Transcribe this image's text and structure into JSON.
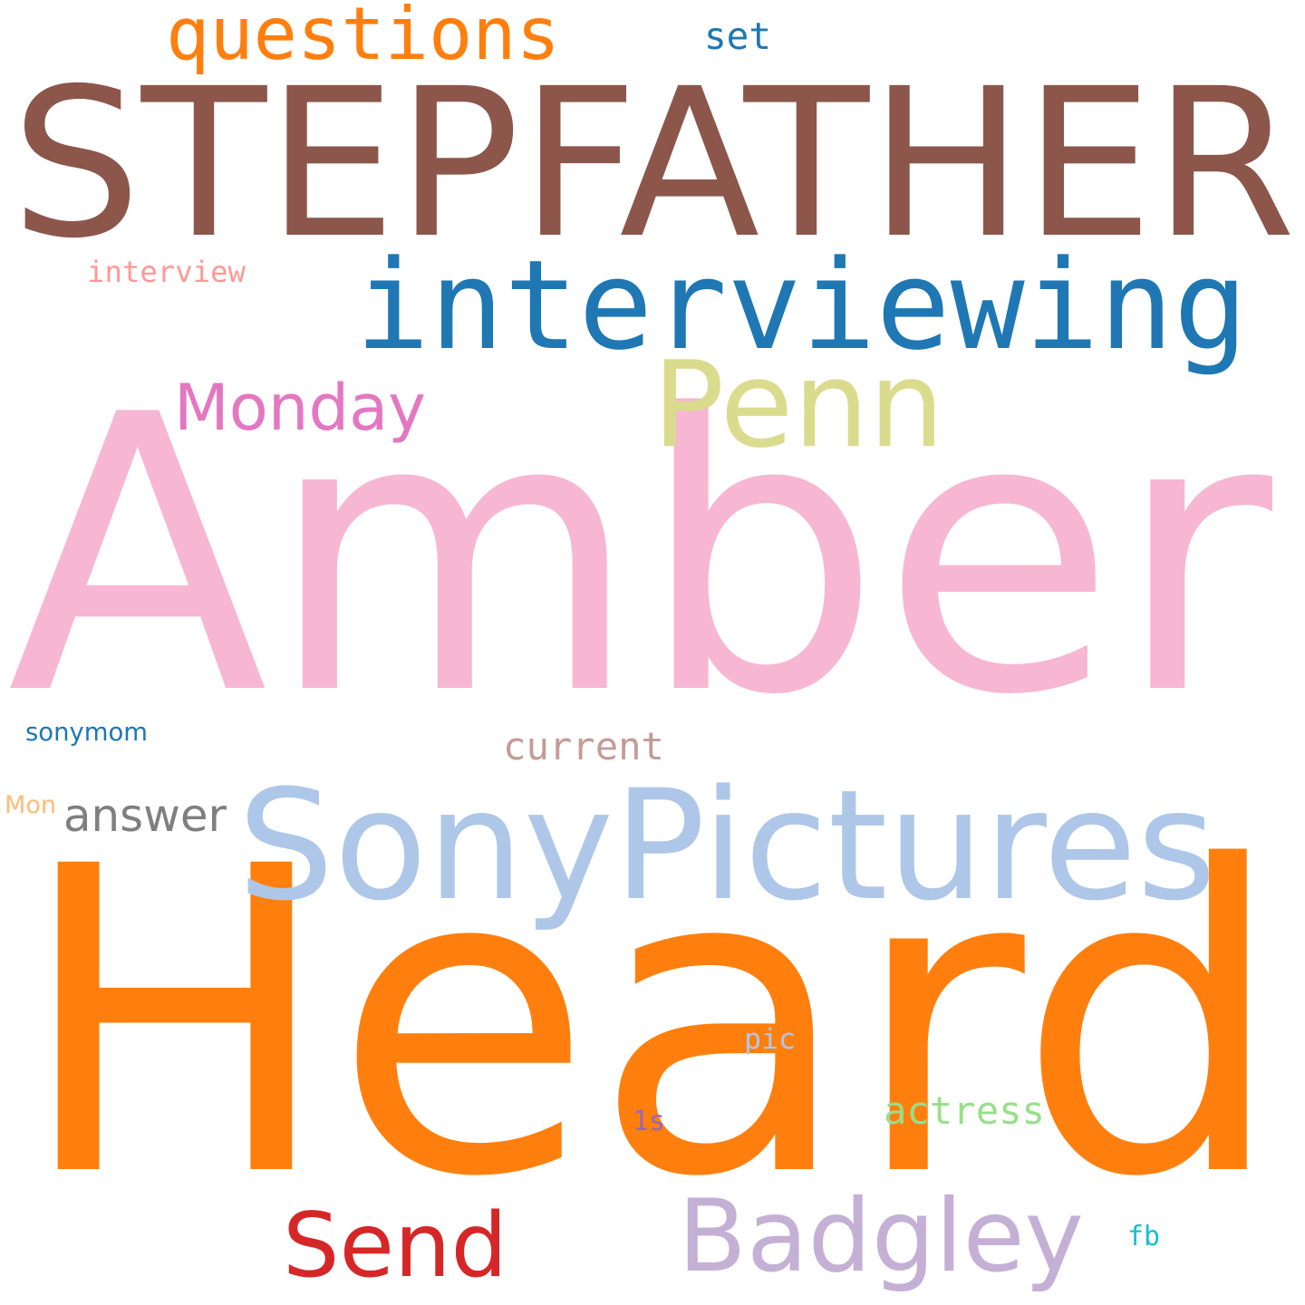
{
  "words": [
    {
      "key": "stepfather",
      "text": "STEPFATHER",
      "color": "#8c564b"
    },
    {
      "key": "amber",
      "text": "Amber",
      "color": "#f7b6d2"
    },
    {
      "key": "heard",
      "text": "Heard",
      "color": "#ff7f0e"
    },
    {
      "key": "interviewing",
      "text": "interviewing",
      "color": "#1f77b4"
    },
    {
      "key": "sonypictures",
      "text": "SonyPictures",
      "color": "#aec7e8"
    },
    {
      "key": "questions",
      "text": "questions",
      "color": "#ff7f0e"
    },
    {
      "key": "penn",
      "text": "Penn",
      "color": "#dbdb8d"
    },
    {
      "key": "monday",
      "text": "Monday",
      "color": "#e377c2"
    },
    {
      "key": "badgley",
      "text": "Badgley",
      "color": "#c5b0d5"
    },
    {
      "key": "send",
      "text": "Send",
      "color": "#d62728"
    },
    {
      "key": "answer",
      "text": "answer",
      "color": "#7f7f7f"
    },
    {
      "key": "actress",
      "text": "actress",
      "color": "#98df8a"
    },
    {
      "key": "current",
      "text": "current",
      "color": "#c49c94"
    },
    {
      "key": "set",
      "text": "set",
      "color": "#1f77b4"
    },
    {
      "key": "interview",
      "text": "interview",
      "color": "#ff9896"
    },
    {
      "key": "sonymom",
      "text": "sonymom",
      "color": "#1f77b4"
    },
    {
      "key": "mon",
      "text": "Mon",
      "color": "#ffbb78"
    },
    {
      "key": "pic",
      "text": "pic",
      "color": "#aec7e8"
    },
    {
      "key": "1s",
      "text": "1s",
      "color": "#9467bd"
    },
    {
      "key": "fb",
      "text": "fb",
      "color": "#17becf"
    }
  ]
}
